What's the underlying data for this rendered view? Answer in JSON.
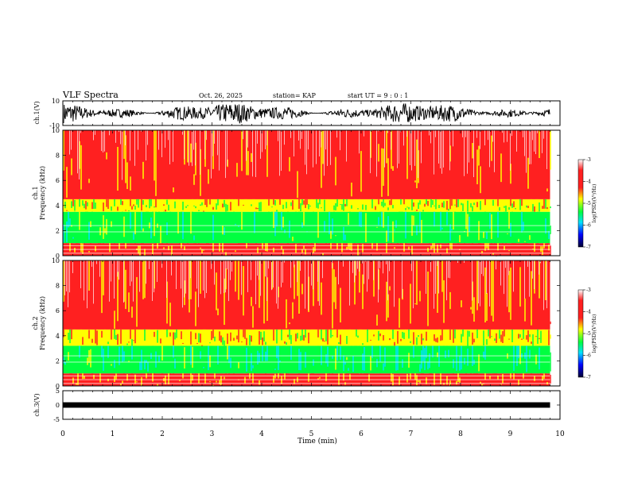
{
  "header": {
    "title": "VLF Spectra",
    "date": "Oct. 26, 2025",
    "station": "station= KAP",
    "start_ut": "start  UT =   9 : 0  : 1"
  },
  "chart_data": [
    {
      "type": "line",
      "panel": "ch1-waveform",
      "ylabel": "ch.1(V)",
      "ylim": [
        -10,
        10
      ],
      "yticks": [
        "10",
        "-10"
      ],
      "xlim": [
        0,
        10
      ],
      "series": [
        {
          "name": "ch.1",
          "values_range": [
            -8,
            8
          ]
        }
      ]
    },
    {
      "type": "heatmap",
      "panel": "ch1-spectrogram",
      "ylabel": "ch.1\nFrequency (kHz)",
      "ylim": [
        0,
        10
      ],
      "yticks": [
        "0",
        "2",
        "4",
        "6",
        "8",
        "10"
      ],
      "xlim": [
        0,
        9.8
      ],
      "colorbar": {
        "label": "log(PSD)(V²/Hz)",
        "range": [
          -7,
          -3
        ],
        "ticks": [
          "-3",
          "-4",
          "-5",
          "-6",
          "-7"
        ]
      },
      "bands": [
        {
          "fmin": 0,
          "fmax": 1,
          "level": -3.3
        },
        {
          "fmin": 1,
          "fmax": 3.5,
          "level": -4.8
        },
        {
          "fmin": 3.5,
          "fmax": 4.5,
          "level": -4.1
        },
        {
          "fmin": 4.5,
          "fmax": 10,
          "level": -3.2
        }
      ]
    },
    {
      "type": "heatmap",
      "panel": "ch2-spectrogram",
      "ylabel": "ch.2\nFrequency (kHz)",
      "ylim": [
        0,
        10
      ],
      "yticks": [
        "0",
        "2",
        "4",
        "6",
        "8",
        "10"
      ],
      "xlim": [
        0,
        9.8
      ],
      "colorbar": {
        "label": "log(PSD)(V²/Hz)",
        "range": [
          -7,
          -3
        ],
        "ticks": [
          "-3",
          "-4",
          "-5",
          "-6",
          "-7"
        ]
      },
      "bands": [
        {
          "fmin": 0,
          "fmax": 1,
          "level": -3.3
        },
        {
          "fmin": 1,
          "fmax": 3.2,
          "level": -5.0
        },
        {
          "fmin": 3.2,
          "fmax": 4.5,
          "level": -3.9
        },
        {
          "fmin": 4.5,
          "fmax": 10,
          "level": -3.2
        }
      ]
    },
    {
      "type": "line",
      "panel": "ch3-waveform",
      "ylabel": "ch.3(V)",
      "ylim": [
        -5,
        5
      ],
      "yticks": [
        "5",
        "0",
        "-5"
      ],
      "xlim": [
        0,
        10
      ],
      "series": [
        {
          "name": "ch.3",
          "values_range": [
            -0.4,
            0.4
          ]
        }
      ]
    }
  ],
  "xaxis": {
    "label": "Time (min)",
    "ticks": [
      "0",
      "1",
      "2",
      "3",
      "4",
      "5",
      "6",
      "7",
      "8",
      "9",
      "10"
    ]
  },
  "colors": {
    "red": "#ff2020",
    "yellow": "#ffff00",
    "green": "#00ff40",
    "cyan": "#00e0ff",
    "blue": "#0000ff",
    "navy": "#000040"
  }
}
